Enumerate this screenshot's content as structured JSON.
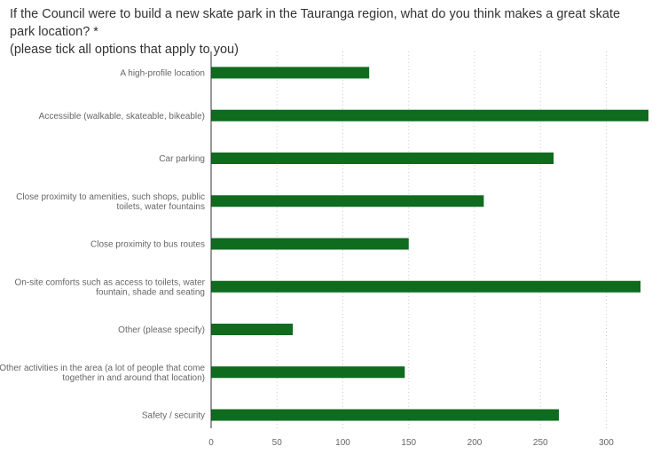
{
  "question": {
    "line1": "If the Council were to build a new skate park in the Tauranga region, what do you think makes a great skate park location? *",
    "line2": "(please tick all options that apply to you)"
  },
  "colors": {
    "bar": "#0f6b1e",
    "grid": "#cccccc",
    "axis": "#333333"
  },
  "chart_data": {
    "type": "bar",
    "orientation": "horizontal",
    "categories": [
      [
        "A high-profile location"
      ],
      [
        "Accessible (walkable, skateable, bikeable)"
      ],
      [
        "Car parking"
      ],
      [
        "Close proximity to amenities, such shops, public",
        "toilets, water fountains"
      ],
      [
        "Close proximity to bus routes"
      ],
      [
        "On-site comforts such as access to toilets, water",
        "fountain, shade and seating"
      ],
      [
        "Other (please specify)"
      ],
      [
        "Other activities in the area (a lot of people that come",
        "together in and around that location)"
      ],
      [
        "Safety / security"
      ]
    ],
    "values": [
      120,
      332,
      260,
      207,
      150,
      326,
      62,
      147,
      264
    ],
    "xticks": [
      0,
      50,
      100,
      150,
      200,
      250,
      300
    ],
    "xlim": [
      0,
      332
    ],
    "grid": "vertical dotted"
  }
}
